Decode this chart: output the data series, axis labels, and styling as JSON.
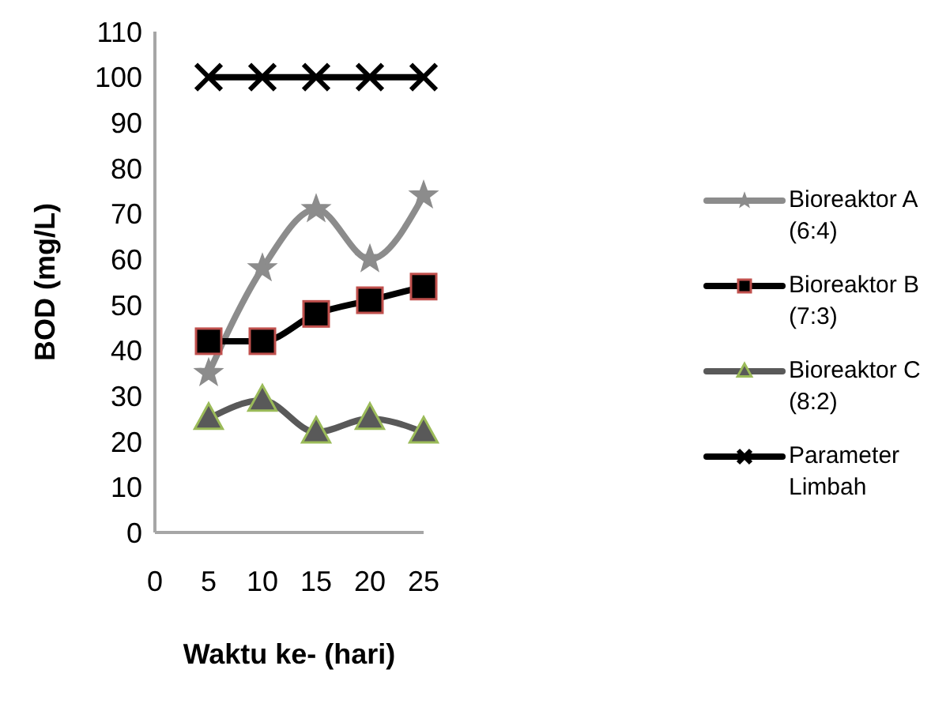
{
  "chart_data": {
    "type": "line",
    "xlabel": "Waktu ke- (hari)",
    "ylabel": "BOD (mg/L)",
    "x": [
      5,
      10,
      15,
      20,
      25
    ],
    "series": [
      {
        "name": "Bioreaktor A (6:4)",
        "color": "#8c8c8c",
        "marker": "star",
        "values": [
          35,
          58,
          71,
          60,
          74
        ]
      },
      {
        "name": "Bioreaktor B (7:3)",
        "color": "#000000",
        "marker": "square",
        "values": [
          42,
          42,
          48,
          51,
          54
        ]
      },
      {
        "name": "Bioreaktor C (8:2)",
        "color": "#595959",
        "marker": "triangle",
        "values": [
          25,
          29,
          22,
          25,
          22
        ]
      },
      {
        "name": "Parameter Limbah",
        "color": "#000000",
        "marker": "cross",
        "values": [
          100,
          100,
          100,
          100,
          100
        ]
      }
    ],
    "xlim": [
      0,
      25
    ],
    "xticks": [
      0,
      5,
      10,
      15,
      20,
      25
    ],
    "ylim": [
      0,
      110
    ],
    "yticks": [
      0,
      10,
      20,
      30,
      40,
      50,
      60,
      70,
      80,
      90,
      100,
      110
    ],
    "grid": false,
    "legend": "right",
    "line_style": "solid"
  }
}
